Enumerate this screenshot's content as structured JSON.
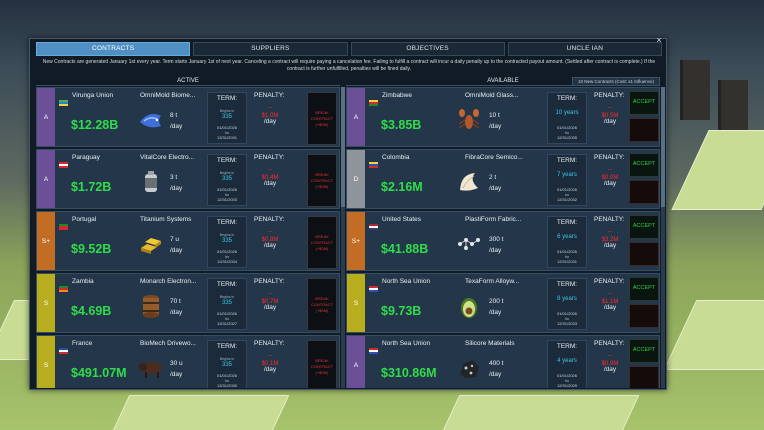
{
  "tabs": [
    {
      "label": "CONTRACTS",
      "active": true
    },
    {
      "label": "SUPPLIERS",
      "active": false
    },
    {
      "label": "OBJECTIVES",
      "active": false
    },
    {
      "label": "UNCLE IAN",
      "active": false
    }
  ],
  "close_label": "×",
  "notice": "New Contracts are generated January 1st every year. Term starts January 1st of next year. Canceling a contract will require paying a cancelation fee. Failing to fulfill a contract will incur a daily penalty up to the contracted payout amount. (Settled after contract is complete.) If the contract is further unfulfilled, penalties will be fined daily.",
  "active_header": "ACTIVE",
  "available_header": "AVAILABLE",
  "available_info": "10 New Contracts (Cost: x1 Influence)",
  "labels": {
    "term": "TERM:",
    "penalty": "PENALTY:",
    "per_day": "/day",
    "begins_in": "Begins in",
    "to": "to",
    "break": "BREAK CONTRACT (+$0M)",
    "accept": "ACCEPT"
  },
  "colors": {
    "grade_A": "#6b4f97",
    "grade_D": "#8e9499",
    "grade_Splus": "#c26d24",
    "grade_S": "#b8ad1e",
    "price": "#2fdc4b",
    "penalty": "#ff2a2a",
    "term": "#37c6e8"
  },
  "active": [
    {
      "grade": "A",
      "grade_color": "#6b4f97",
      "flag": [
        "#4bb34b",
        "#2f7fd0",
        "#f3d23a"
      ],
      "country": "Virunga Union",
      "company": "OmniMold Biome...",
      "price": "$12.28B",
      "qty": "8 t",
      "per": "/day",
      "icon": "fish-icon",
      "days": "335",
      "start": "01/01/2026",
      "end": "12/31/2031",
      "penalty": "--",
      "penalty_sub": "$1.0M",
      "penalty_day": "/day"
    },
    {
      "grade": "A",
      "grade_color": "#6b4f97",
      "flag": [
        "#d62a2a",
        "#ffffff",
        "#d62a2a"
      ],
      "country": "Paraguay",
      "company": "VitalCore Electro...",
      "price": "$1.72B",
      "qty": "3 t",
      "per": "/day",
      "icon": "canister-icon",
      "days": "335",
      "start": "01/01/2026",
      "end": "12/31/2033",
      "penalty": "--",
      "penalty_sub": "$0.4M",
      "penalty_day": "/day"
    },
    {
      "grade": "S+",
      "grade_color": "#c26d24",
      "flag": [
        "#1e8a2e",
        "#d62a2a",
        "#d62a2a"
      ],
      "country": "Portugal",
      "company": "Titanium Systems",
      "price": "$9.52B",
      "qty": "7 u",
      "per": "/day",
      "icon": "ingots-icon",
      "days": "335",
      "start": "01/01/2026",
      "end": "12/31/2034",
      "penalty": "--",
      "penalty_sub": "$0.8M",
      "penalty_day": "/day"
    },
    {
      "grade": "S",
      "grade_color": "#b8ad1e",
      "flag": [
        "#1e8a2e",
        "#d62a2a",
        "#f08a18"
      ],
      "country": "Zambia",
      "company": "Monarch Electron...",
      "price": "$4.69B",
      "qty": "70 t",
      "per": "/day",
      "icon": "barrel-icon",
      "days": "335",
      "start": "01/01/2026",
      "end": "12/31/2027",
      "penalty": "--",
      "penalty_sub": "$0.7M",
      "penalty_day": "/day"
    },
    {
      "grade": "S",
      "grade_color": "#b8ad1e",
      "flag": [
        "#1f4fb5",
        "#ffffff",
        "#d62a2a"
      ],
      "country": "France",
      "company": "BioMech Drivewo...",
      "price": "$491.07M",
      "qty": "30 u",
      "per": "/day",
      "icon": "bison-icon",
      "days": "335",
      "start": "01/01/2026",
      "end": "12/31/2030",
      "penalty": "--",
      "penalty_sub": "$0.1M",
      "penalty_day": "/day"
    }
  ],
  "available": [
    {
      "grade": "A",
      "grade_color": "#6b4f97",
      "flag": [
        "#f3d23a",
        "#d62a2a",
        "#1e8a2e"
      ],
      "country": "Zimbabwe",
      "company": "OmniMold Glass...",
      "price": "$3.85B",
      "qty": "10 t",
      "per": "/day",
      "icon": "lobster-icon",
      "years": "10 years",
      "start": "01/01/2026",
      "end": "12/31/2035",
      "penalty": "--",
      "penalty_sub": "$0.5M",
      "penalty_day": "/day"
    },
    {
      "grade": "D",
      "grade_color": "#8e9499",
      "flag": [
        "#f3d23a",
        "#2f4fb5",
        "#d62a2a"
      ],
      "country": "Colombia",
      "company": "FibraCore Semico...",
      "price": "$2.16M",
      "qty": "2 t",
      "per": "/day",
      "icon": "shell-icon",
      "years": "7 years",
      "start": "01/01/2026",
      "end": "12/31/2032",
      "penalty": "--",
      "penalty_sub": "$0.0M",
      "penalty_day": "/day"
    },
    {
      "grade": "S+",
      "grade_color": "#c26d24",
      "flag": [
        "#b22234",
        "#ffffff",
        "#3c3b6e"
      ],
      "country": "United States",
      "company": "PlastiForm Fabric...",
      "price": "$41.88B",
      "qty": "300 t",
      "per": "/day",
      "icon": "molecule-icon",
      "years": "6 years",
      "start": "01/01/2026",
      "end": "12/31/2031",
      "penalty": "--",
      "penalty_sub": "$3.2M",
      "penalty_day": "/day"
    },
    {
      "grade": "S",
      "grade_color": "#b8ad1e",
      "flag": [
        "#d62a2a",
        "#ffffff",
        "#2f4fb5"
      ],
      "country": "North Sea Union",
      "company": "TexaForm Alloyw...",
      "price": "$9.73B",
      "qty": "200 t",
      "per": "/day",
      "icon": "avocado-icon",
      "years": "8 years",
      "start": "01/01/2026",
      "end": "12/31/2033",
      "penalty": "--",
      "penalty_sub": "$1.1M",
      "penalty_day": "/day"
    },
    {
      "grade": "A",
      "grade_color": "#6b4f97",
      "flag": [
        "#d62a2a",
        "#ffffff",
        "#2f4fb5"
      ],
      "country": "North Sea Union",
      "company": "Silicore Materials",
      "price": "$310.86M",
      "qty": "400 t",
      "per": "/day",
      "icon": "ore-icon",
      "years": "4 years",
      "start": "01/01/2026",
      "end": "12/31/2029",
      "penalty": "--",
      "penalty_sub": "$0.9M",
      "penalty_day": "/day"
    }
  ]
}
